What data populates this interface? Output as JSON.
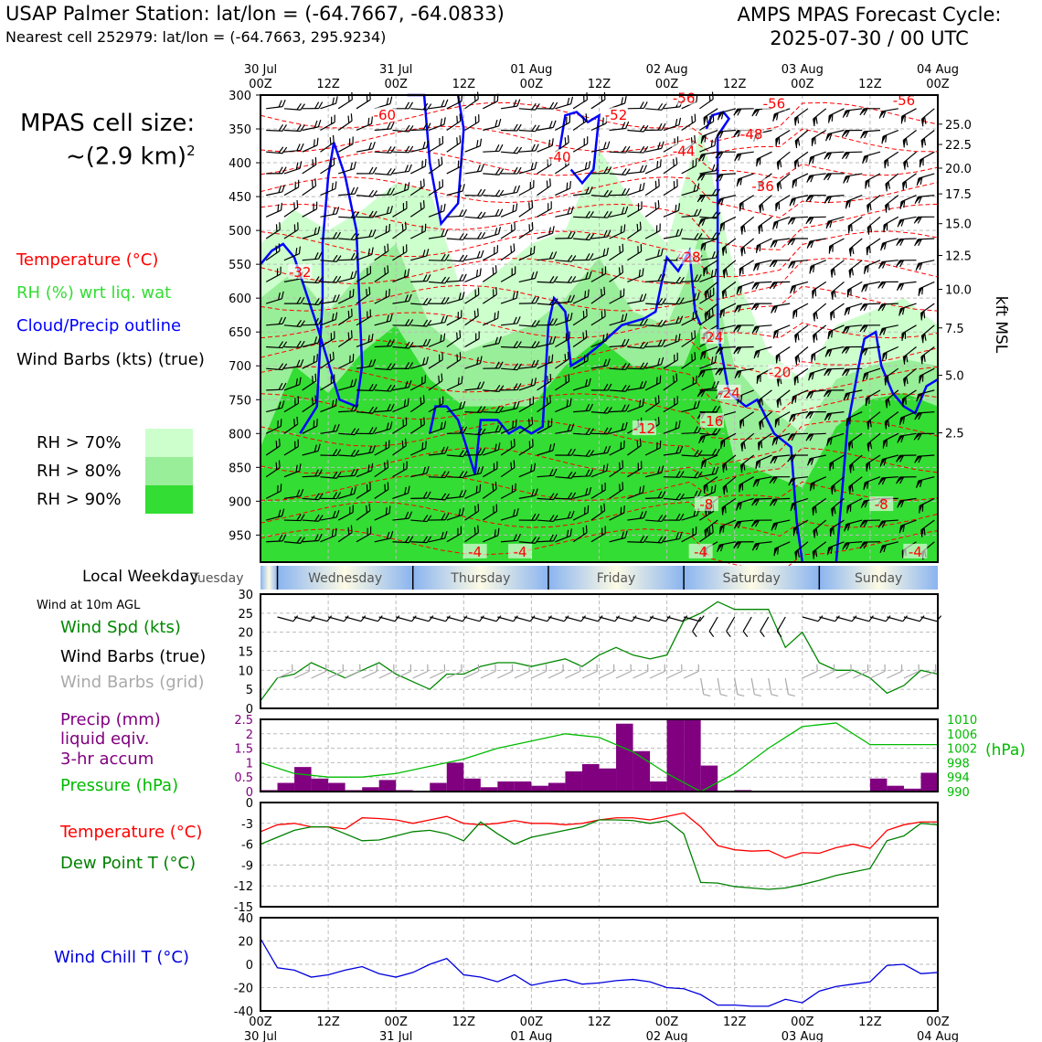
{
  "header": {
    "title": "USAP Palmer Station: lat/lon = (-64.7667, -64.0833)",
    "subtitle": "Nearest cell 252979: lat/lon = (-64.7663, 295.9234)",
    "cycle_line1": "AMPS MPAS Forecast Cycle:",
    "cycle_line2": "2025-07-30 / 00 UTC"
  },
  "sidebar": {
    "cell_size_line1": "MPAS cell size:",
    "cell_size_line2": "~(2.9 km)",
    "cell_size_exp": "2",
    "legend_temperature": "Temperature (°C)",
    "legend_rh": "RH (%) wrt liq. wat",
    "legend_cloud": "Cloud/Precip outline",
    "legend_wind": "Wind Barbs (kts) (true)",
    "rh_70": "RH > 70%",
    "rh_80": "RH > 80%",
    "rh_90": "RH > 90%",
    "local_weekday": "Local Weekday",
    "wind_at_10m": "Wind at 10m AGL",
    "wind_spd": "Wind Spd (kts)",
    "wind_barbs_true": "Wind Barbs (true)",
    "wind_barbs_grid": "Wind Barbs (grid)",
    "precip_line1": "Precip (mm)",
    "precip_line2": "liquid eqiv.",
    "precip_line3": "3-hr accum",
    "pressure": "Pressure (hPa)",
    "temperature": "Temperature (°C)",
    "dewpoint": "Dew Point T (°C)",
    "windchill": "Wind Chill T (°C)"
  },
  "colors": {
    "temperature": "#ff0000",
    "rh": "#33dd33",
    "cloud": "#0000ff",
    "wind": "#000000",
    "wind_grid": "#aaaaaa",
    "wind_speed": "#008800",
    "precip": "#800080",
    "pressure": "#00bb00",
    "dewpoint": "#008000",
    "windchill": "#0000dd",
    "rh70": "#ccffcc",
    "rh80": "#99ee99",
    "rh90": "#33dd33"
  },
  "time_axis": {
    "ticks": [
      {
        "top": "00Z",
        "bottom": "30 Jul"
      },
      {
        "top": "12Z",
        "bottom": ""
      },
      {
        "top": "00Z",
        "bottom": "31 Jul"
      },
      {
        "top": "12Z",
        "bottom": ""
      },
      {
        "top": "00Z",
        "bottom": "01 Aug"
      },
      {
        "top": "12Z",
        "bottom": ""
      },
      {
        "top": "00Z",
        "bottom": "02 Aug"
      },
      {
        "top": "12Z",
        "bottom": ""
      },
      {
        "top": "00Z",
        "bottom": "03 Aug"
      },
      {
        "top": "12Z",
        "bottom": ""
      },
      {
        "top": "00Z",
        "bottom": "04 Aug"
      }
    ]
  },
  "weekdays": [
    "Tuesday",
    "Wednesday",
    "Thursday",
    "Friday",
    "Saturday",
    "Sunday"
  ],
  "chart_data": [
    {
      "type": "heatmap",
      "name": "time-height cross section",
      "y_axis_left_label": "",
      "y_ticks_hpa": [
        300,
        350,
        400,
        450,
        500,
        550,
        600,
        650,
        700,
        750,
        800,
        850,
        900,
        950
      ],
      "y_axis_right_label": "kft MSL",
      "y_ticks_kft": [
        {
          "label": "25.0",
          "hpa": 343
        },
        {
          "label": "22.5",
          "hpa": 373
        },
        {
          "label": "20.0",
          "hpa": 408
        },
        {
          "label": "17.5",
          "hpa": 446
        },
        {
          "label": "15.0",
          "hpa": 490
        },
        {
          "label": "12.5",
          "hpa": 537
        },
        {
          "label": "10.0",
          "hpa": 587
        },
        {
          "label": "7.5",
          "hpa": 644
        },
        {
          "label": "5.0",
          "hpa": 714
        },
        {
          "label": "2.5",
          "hpa": 799
        }
      ],
      "ylim_hpa": [
        990,
        300
      ],
      "xlim_hours": [
        0,
        120
      ],
      "temperature_contour_labels": [
        {
          "text": "-60",
          "hour": 22,
          "hpa": 330
        },
        {
          "text": "-52",
          "hour": 63,
          "hpa": 330
        },
        {
          "text": "-56",
          "hour": 75,
          "hpa": 305
        },
        {
          "text": "-56",
          "hour": 91,
          "hpa": 313
        },
        {
          "text": "-56",
          "hour": 114,
          "hpa": 308
        },
        {
          "text": "-48",
          "hour": 87,
          "hpa": 358
        },
        {
          "text": "-40",
          "hour": 53,
          "hpa": 392
        },
        {
          "text": "-44",
          "hour": 75,
          "hpa": 383
        },
        {
          "text": "-36",
          "hour": 89,
          "hpa": 435
        },
        {
          "text": "-32",
          "hour": 7,
          "hpa": 562
        },
        {
          "text": "-28",
          "hour": 76,
          "hpa": 540
        },
        {
          "text": "-24",
          "hour": 80,
          "hpa": 658
        },
        {
          "text": "-20",
          "hour": 92,
          "hpa": 710
        },
        {
          "text": "-24",
          "hour": 83,
          "hpa": 740
        },
        {
          "text": "-12",
          "hour": 68,
          "hpa": 793
        },
        {
          "text": "-16",
          "hour": 80,
          "hpa": 782
        },
        {
          "text": "-8",
          "hour": 79,
          "hpa": 905
        },
        {
          "text": "-8",
          "hour": 110,
          "hpa": 905
        },
        {
          "text": "-4",
          "hour": 38,
          "hpa": 975
        },
        {
          "text": "-4",
          "hour": 46,
          "hpa": 975
        },
        {
          "text": "-4",
          "hour": 78,
          "hpa": 975
        },
        {
          "text": "-4",
          "hour": 116,
          "hpa": 975
        }
      ],
      "rh_series": [
        "RH > 70%",
        "RH > 80%",
        "RH > 90%"
      ]
    },
    {
      "type": "line",
      "name": "wind speed 10m",
      "ylabel": "",
      "ylim": [
        0,
        30
      ],
      "y_ticks": [
        0,
        5,
        10,
        15,
        20,
        25,
        30
      ],
      "x_hours": [
        0,
        3,
        6,
        9,
        12,
        15,
        18,
        21,
        24,
        27,
        30,
        33,
        36,
        39,
        42,
        45,
        48,
        51,
        54,
        57,
        60,
        63,
        66,
        69,
        72,
        75,
        78,
        81,
        84,
        87,
        90,
        93,
        96,
        99,
        102,
        105,
        108,
        111,
        114,
        117,
        120
      ],
      "series": [
        {
          "name": "Wind Spd (kts)",
          "values": [
            2,
            8,
            9,
            12,
            10,
            8,
            10,
            12,
            9,
            7,
            5,
            9,
            9,
            11,
            12,
            12,
            11,
            12,
            13,
            11,
            14,
            16,
            14,
            13,
            14,
            23,
            25,
            28,
            26,
            26,
            26,
            16,
            20,
            12,
            10,
            10,
            8,
            4,
            6,
            10,
            9
          ]
        }
      ]
    },
    {
      "type": "bar",
      "name": "precip and pressure",
      "ylim_precip": [
        0,
        2.5
      ],
      "y_ticks_precip": [
        0,
        0.5,
        1.0,
        1.5,
        2.0,
        2.5
      ],
      "ylim_pressure": [
        990,
        1010
      ],
      "y_ticks_pressure": [
        990,
        994,
        998,
        1002,
        1006,
        1010
      ],
      "pressure_unit": "(hPa)",
      "x_hours": [
        1.5,
        4.5,
        7.5,
        10.5,
        13.5,
        16.5,
        19.5,
        22.5,
        25.5,
        28.5,
        31.5,
        34.5,
        37.5,
        40.5,
        43.5,
        46.5,
        49.5,
        52.5,
        55.5,
        58.5,
        61.5,
        64.5,
        67.5,
        70.5,
        73.5,
        76.5,
        79.5,
        82.5,
        85.5,
        88.5,
        91.5,
        94.5,
        97.5,
        100.5,
        103.5,
        106.5,
        109.5,
        112.5,
        115.5,
        118.5
      ],
      "series": [
        {
          "name": "Precip (mm)",
          "values": [
            0.05,
            0.3,
            0.85,
            0.45,
            0.3,
            0.05,
            0.15,
            0.4,
            0.05,
            0.0,
            0.3,
            1.0,
            0.45,
            0.15,
            0.35,
            0.35,
            0.2,
            0.3,
            0.7,
            0.95,
            0.8,
            2.35,
            1.4,
            0.35,
            2.5,
            2.5,
            0.9,
            0.0,
            0.05,
            0.0,
            0.0,
            0.0,
            0.0,
            0.0,
            0.0,
            0.0,
            0.45,
            0.2,
            0.1,
            0.65
          ]
        },
        {
          "name": "Pressure (hPa)",
          "x_hours": [
            0,
            6,
            12,
            18,
            24,
            30,
            36,
            42,
            48,
            54,
            60,
            66,
            72,
            78,
            84,
            90,
            96,
            102,
            108,
            114,
            120
          ],
          "values": [
            998,
            995,
            994,
            994,
            995,
            997,
            999,
            1002,
            1004,
            1006,
            1005,
            1001,
            995,
            990,
            995,
            1002,
            1008,
            1009,
            1003,
            1003,
            1003
          ]
        }
      ]
    },
    {
      "type": "line",
      "name": "temperature and dew point",
      "ylim": [
        -15,
        0
      ],
      "y_ticks": [
        0,
        -3,
        -6,
        -9,
        -12,
        -15
      ],
      "x_hours": [
        0,
        3,
        6,
        9,
        12,
        15,
        18,
        21,
        24,
        27,
        30,
        33,
        36,
        39,
        42,
        45,
        48,
        51,
        54,
        57,
        60,
        63,
        66,
        69,
        72,
        75,
        78,
        81,
        84,
        87,
        90,
        93,
        96,
        99,
        102,
        105,
        108,
        111,
        114,
        117,
        120
      ],
      "series": [
        {
          "name": "Temperature (°C)",
          "values": [
            -4.2,
            -3.2,
            -3.0,
            -3.5,
            -3.5,
            -3.8,
            -2.2,
            -2.3,
            -2.5,
            -3.0,
            -2.5,
            -2.0,
            -3.0,
            -3.2,
            -3.0,
            -2.6,
            -3.0,
            -3.0,
            -3.2,
            -3.0,
            -2.5,
            -2.2,
            -2.2,
            -2.5,
            -2.0,
            -1.5,
            -3.5,
            -6.2,
            -6.8,
            -7.0,
            -6.9,
            -8.0,
            -7.2,
            -7.3,
            -6.5,
            -6.0,
            -6.6,
            -4.0,
            -3.2,
            -2.8,
            -2.8
          ]
        },
        {
          "name": "Dew Point T (°C)",
          "values": [
            -6.0,
            -5.0,
            -4.0,
            -3.5,
            -3.5,
            -4.5,
            -5.5,
            -5.4,
            -4.8,
            -4.2,
            -4.0,
            -4.5,
            -5.5,
            -2.8,
            -4.5,
            -6.0,
            -5.0,
            -4.5,
            -4.0,
            -3.5,
            -2.5,
            -2.5,
            -2.6,
            -3.0,
            -2.6,
            -4.5,
            -11.5,
            -11.6,
            -12.1,
            -12.3,
            -12.5,
            -12.3,
            -11.8,
            -11.2,
            -10.5,
            -10.0,
            -9.5,
            -5.5,
            -4.8,
            -3.0,
            -3.2
          ]
        }
      ]
    },
    {
      "type": "line",
      "name": "wind chill",
      "ylim": [
        -40,
        40
      ],
      "y_ticks": [
        40,
        20,
        0,
        -20,
        -40
      ],
      "x_hours": [
        0,
        3,
        6,
        9,
        12,
        15,
        18,
        21,
        24,
        27,
        30,
        33,
        36,
        39,
        42,
        45,
        48,
        51,
        54,
        57,
        60,
        63,
        66,
        69,
        72,
        75,
        78,
        81,
        84,
        87,
        90,
        93,
        96,
        99,
        102,
        105,
        108,
        111,
        114,
        117,
        120
      ],
      "series": [
        {
          "name": "Wind Chill T (°C)",
          "values": [
            22,
            -3,
            -5,
            -11,
            -9,
            -5,
            -2,
            -8,
            -11,
            -7,
            0,
            5,
            -9,
            -11,
            -15,
            -9,
            -18,
            -15,
            -13,
            -17,
            -16,
            -14,
            -13,
            -15,
            -20,
            -21,
            -26,
            -35,
            -35,
            -36,
            -36,
            -30,
            -33,
            -23,
            -19,
            -17,
            -15,
            -1,
            0,
            -8,
            -7
          ]
        }
      ]
    }
  ]
}
